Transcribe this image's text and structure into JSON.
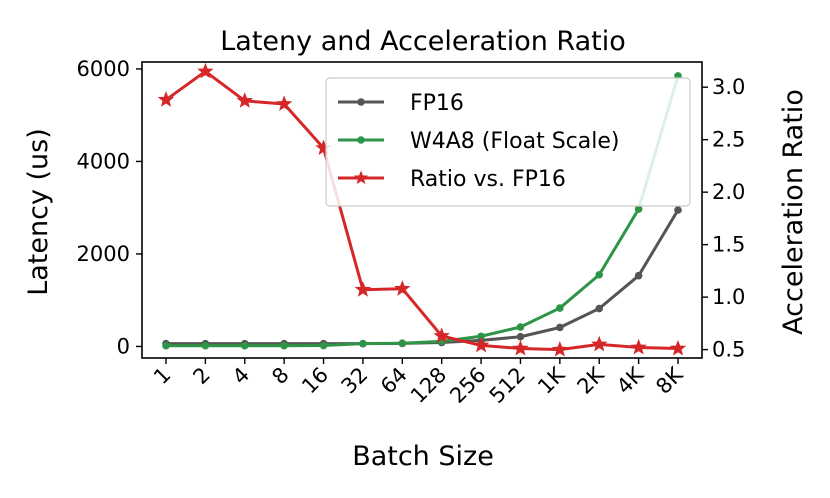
{
  "chart_data": {
    "type": "line",
    "title": "Lateny and Acceleration Ratio",
    "xlabel": "Batch Size",
    "ylabel_left": "Latency (us)",
    "ylabel_right": "Acceleration Ratio",
    "categories": [
      "1",
      "2",
      "4",
      "8",
      "16",
      "32",
      "64",
      "128",
      "256",
      "512",
      "1K",
      "2K",
      "4K",
      "8K"
    ],
    "y_left": {
      "ylim": [
        -250,
        6150
      ],
      "ticks": [
        0,
        2000,
        4000,
        6000
      ],
      "tick_labels": [
        "0",
        "2000",
        "4000",
        "6000"
      ]
    },
    "y_right": {
      "ylim": [
        0.42,
        3.24
      ],
      "ticks": [
        0.5,
        1.0,
        1.5,
        2.0,
        2.5,
        3.0
      ],
      "tick_labels": [
        "0.5",
        "1.0",
        "1.5",
        "2.0",
        "2.5",
        "3.0"
      ]
    },
    "series": [
      {
        "name": "FP16",
        "axis": "left",
        "color": "#555555",
        "marker": "circle",
        "values": [
          60,
          60,
          60,
          60,
          60,
          60,
          65,
          85,
          130,
          210,
          410,
          820,
          1530,
          2950
        ]
      },
      {
        "name": "W4A8 (Float Scale)",
        "axis": "left",
        "color": "#2e9448",
        "marker": "circle",
        "values": [
          15,
          15,
          15,
          15,
          20,
          60,
          70,
          110,
          220,
          420,
          830,
          1550,
          2970,
          5850
        ]
      },
      {
        "name": "Ratio vs. FP16",
        "axis": "right",
        "color": "#d62728",
        "marker": "star",
        "values": [
          2.88,
          3.15,
          2.87,
          2.84,
          2.42,
          1.07,
          1.08,
          0.63,
          0.54,
          0.51,
          0.5,
          0.55,
          0.52,
          0.51
        ]
      }
    ],
    "legend": {
      "position": "top-right"
    },
    "grid": false
  }
}
